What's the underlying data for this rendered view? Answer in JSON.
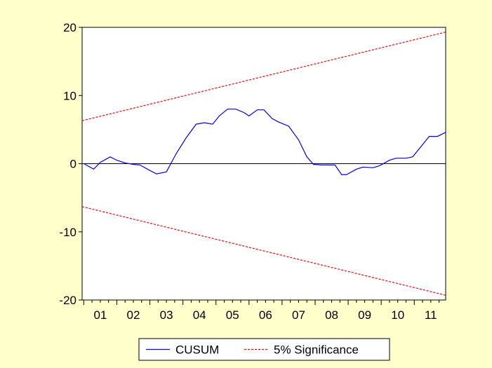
{
  "colors": {
    "background": "#FFFFCC",
    "plot_area": "#FFFFFF",
    "cusum": "#0000FF",
    "significance": "#FF0000",
    "zero_line": "#000000"
  },
  "chart_data": {
    "type": "line",
    "title": "",
    "xlabel": "",
    "ylabel": "",
    "xlim": [
      2000.95,
      2011.95
    ],
    "ylim": [
      -20,
      20
    ],
    "yticks": [
      20,
      10,
      0,
      -10,
      -20
    ],
    "ytick_labels": [
      "20",
      "10",
      "0",
      "-10",
      "-20"
    ],
    "xtick_labels": [
      "01",
      "02",
      "03",
      "04",
      "05",
      "06",
      "07",
      "08",
      "09",
      "10",
      "11"
    ],
    "xtick_positions": [
      2001.5,
      2002.5,
      2003.5,
      2004.5,
      2005.5,
      2006.5,
      2007.5,
      2008.5,
      2009.5,
      2010.5,
      2011.5
    ],
    "reference_line": 0,
    "grid": false,
    "legend_position": "bottom",
    "series": [
      {
        "name": "CUSUM",
        "style": "solid",
        "color": "#0000FF",
        "x": [
          2001.0,
          2001.3,
          2001.5,
          2001.8,
          2002.0,
          2002.25,
          2002.5,
          2002.7,
          2003.0,
          2003.2,
          2003.5,
          2003.8,
          2004.1,
          2004.4,
          2004.65,
          2004.9,
          2005.1,
          2005.35,
          2005.6,
          2005.85,
          2006.0,
          2006.25,
          2006.45,
          2006.7,
          2006.9,
          2007.2,
          2007.5,
          2007.75,
          2007.95,
          2008.2,
          2008.35,
          2008.6,
          2008.8,
          2008.95,
          2009.25,
          2009.45,
          2009.75,
          2009.95,
          2010.25,
          2010.45,
          2010.75,
          2010.95,
          2011.2,
          2011.45,
          2011.7,
          2011.95
        ],
        "y": [
          0,
          -0.8,
          0.2,
          1.0,
          0.5,
          0.1,
          -0.1,
          -0.2,
          -1.0,
          -1.5,
          -1.2,
          1.5,
          3.8,
          5.8,
          6.0,
          5.8,
          7.0,
          8.0,
          8.0,
          7.5,
          7.0,
          7.9,
          7.9,
          6.6,
          6.1,
          5.5,
          3.5,
          1.0,
          -0.1,
          -0.2,
          -0.2,
          -0.2,
          -1.6,
          -1.6,
          -0.8,
          -0.5,
          -0.6,
          -0.3,
          0.5,
          0.8,
          0.8,
          1.0,
          2.5,
          4.0,
          4.0,
          4.6
        ]
      },
      {
        "name": "5% Significance",
        "style": "dashed",
        "color": "#FF0000",
        "x": [
          2000.95,
          2011.95
        ],
        "y_upper": [
          6.3,
          19.3
        ],
        "y_lower": [
          -6.3,
          -19.3
        ]
      }
    ]
  }
}
